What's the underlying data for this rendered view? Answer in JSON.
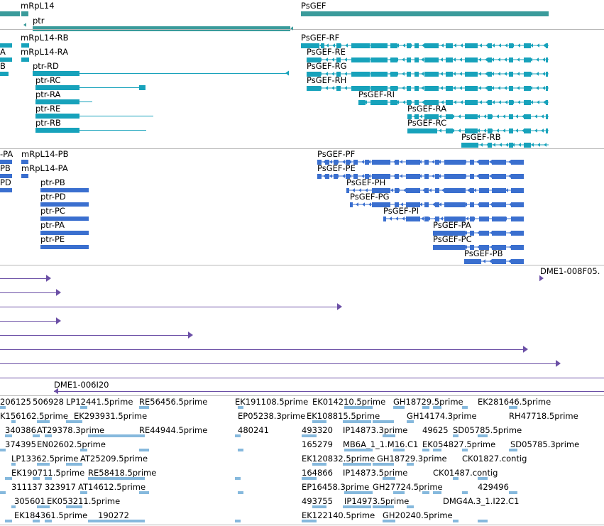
{
  "colors": {
    "gene": "#3a9b9b",
    "flybase_transcript": "#17a2bb",
    "refseq_transcript": "#3a6fcf",
    "clone": "#6b4fa6",
    "est": "#86b9dd"
  },
  "tracks": {
    "genes": {
      "labels": [
        "mRpL14",
        "ptr",
        "PsGEF"
      ]
    },
    "flybase_transcripts": {
      "labels": [
        "mRpL14-RB",
        "A",
        "mRpL14-RA",
        "B",
        "ptr-RD",
        "ptr-RC",
        "ptr-RA",
        "ptr-RE",
        "ptr-RB",
        "PsGEF-RF",
        "PsGEF-RE",
        "PsGEF-RG",
        "PsGEF-RH",
        "PsGEF-RI",
        "PsGEF-RA",
        "PsGEF-RC",
        "PsGEF-RB"
      ]
    },
    "refseq_transcripts": {
      "labels": [
        "-PA",
        "mRpL14-PB",
        "PB",
        "mRpL14-PA",
        "PD",
        "ptr-PB",
        "ptr-PD",
        "ptr-PC",
        "ptr-PA",
        "ptr-PE",
        "PsGEF-PF",
        "PsGEF-PE",
        "PsGEF-PH",
        "PsGEF-PG",
        "PsGEF-PI",
        "PsGEF-PA",
        "PsGEF-PC",
        "PsGEF-PB"
      ]
    },
    "clones": {
      "labels": [
        "DME1-008F05.",
        "DME1-006I20"
      ]
    },
    "ests": {
      "labels": [
        "206125",
        "506928",
        "LP12441.5prime",
        "RE56456.5prime",
        "EK191108.5prime",
        "EK014210.5prime",
        "GH18729.5prime",
        "EK281646.5prime",
        "K156162.5prime",
        "EK293931.5prime",
        "EP05238.3prime",
        "EK108815.5prime",
        "GH14174.3prime",
        "RH47718.5prime",
        "340386",
        "AT29378.3prime",
        "RE44944.5prime",
        "480241",
        "493320",
        "IP14873.3prime",
        "49625",
        "SD05785.5prime",
        "374395",
        "EN02602.5prime",
        "165279",
        "MB6A_1_1.M16.C1",
        "EK054827.5prime",
        "SD05785.3prime",
        "LP13362.5prime",
        "AT25209.5prime",
        "EK120832.5prime",
        "GH18729.3prime",
        "CK01827.contig",
        "EK190711.5prime",
        "RE58418.5prime",
        "164866",
        "IP14873.5prime",
        "CK01487.contig",
        "311137",
        "323917",
        "AT14612.5prime",
        "EP16458.3prime",
        "GH27724.5prime",
        "429496",
        "305601",
        "EK053211.5prime",
        "493755",
        "IP14973.5prime",
        "DMG4A.3_1.I22.C1",
        "EK184361.5prime",
        "190272",
        "EK122140.5prime",
        "GH20240.5prime"
      ]
    }
  }
}
